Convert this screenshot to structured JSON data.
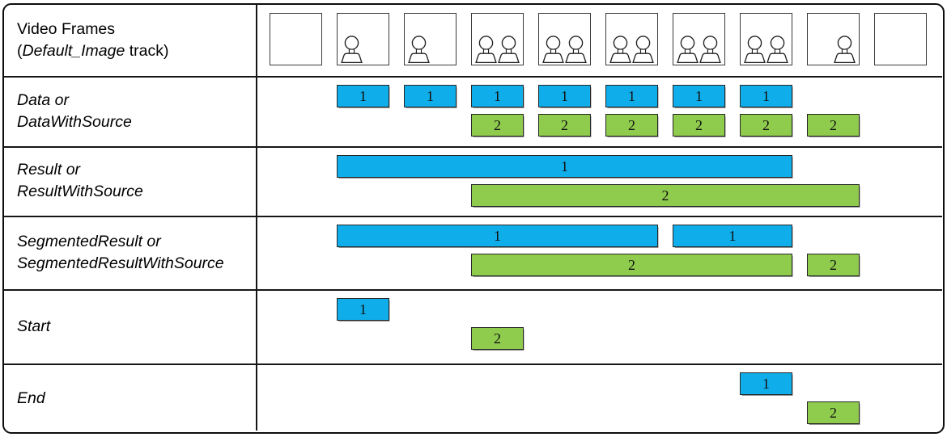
{
  "colors": {
    "track1_fill": "#0FAEEA",
    "track2_fill": "#8FCC4E"
  },
  "header_row": {
    "label_line1": "Video Frames",
    "label_line2_prefix": "(",
    "label_line2_italic": "Default_Image",
    "label_line2_suffix": " track)"
  },
  "video_frames": [
    {
      "persons": []
    },
    {
      "persons": [
        "left"
      ]
    },
    {
      "persons": [
        "left"
      ]
    },
    {
      "persons": [
        "left",
        "right"
      ]
    },
    {
      "persons": [
        "left",
        "right"
      ]
    },
    {
      "persons": [
        "left",
        "right"
      ]
    },
    {
      "persons": [
        "left",
        "right"
      ]
    },
    {
      "persons": [
        "left",
        "right"
      ]
    },
    {
      "persons": [
        "right"
      ]
    },
    {
      "persons": []
    }
  ],
  "track_rows": [
    {
      "label": "Data or\nDataWithSource",
      "bars": [
        {
          "track": 1,
          "label": "1",
          "from_frame": 2,
          "to_frame": 2
        },
        {
          "track": 1,
          "label": "1",
          "from_frame": 3,
          "to_frame": 3
        },
        {
          "track": 1,
          "label": "1",
          "from_frame": 4,
          "to_frame": 4
        },
        {
          "track": 1,
          "label": "1",
          "from_frame": 5,
          "to_frame": 5
        },
        {
          "track": 1,
          "label": "1",
          "from_frame": 6,
          "to_frame": 6
        },
        {
          "track": 1,
          "label": "1",
          "from_frame": 7,
          "to_frame": 7
        },
        {
          "track": 1,
          "label": "1",
          "from_frame": 8,
          "to_frame": 8
        },
        {
          "track": 2,
          "label": "2",
          "from_frame": 4,
          "to_frame": 4
        },
        {
          "track": 2,
          "label": "2",
          "from_frame": 5,
          "to_frame": 5
        },
        {
          "track": 2,
          "label": "2",
          "from_frame": 6,
          "to_frame": 6
        },
        {
          "track": 2,
          "label": "2",
          "from_frame": 7,
          "to_frame": 7
        },
        {
          "track": 2,
          "label": "2",
          "from_frame": 8,
          "to_frame": 8
        },
        {
          "track": 2,
          "label": "2",
          "from_frame": 9,
          "to_frame": 9
        }
      ]
    },
    {
      "label": "Result or\nResultWithSource",
      "bars": [
        {
          "track": 1,
          "label": "1",
          "from_frame": 2,
          "to_frame": 8
        },
        {
          "track": 2,
          "label": "2",
          "from_frame": 4,
          "to_frame": 9
        }
      ]
    },
    {
      "label": "SegmentedResult or\nSegmentedResultWithSource",
      "bars": [
        {
          "track": 1,
          "label": "1",
          "from_frame": 2,
          "to_frame": 6
        },
        {
          "track": 1,
          "label": "1",
          "from_frame": 7,
          "to_frame": 8
        },
        {
          "track": 2,
          "label": "2",
          "from_frame": 4,
          "to_frame": 8
        },
        {
          "track": 2,
          "label": "2",
          "from_frame": 9,
          "to_frame": 9
        }
      ]
    },
    {
      "label": "Start",
      "bars": [
        {
          "track": 1,
          "label": "1",
          "from_frame": 2,
          "to_frame": 2
        },
        {
          "track": 2,
          "label": "2",
          "from_frame": 4,
          "to_frame": 4
        }
      ]
    },
    {
      "label": "End",
      "bars": [
        {
          "track": 1,
          "label": "1",
          "from_frame": 8,
          "to_frame": 8
        },
        {
          "track": 2,
          "label": "2",
          "from_frame": 9,
          "to_frame": 9
        }
      ]
    }
  ]
}
